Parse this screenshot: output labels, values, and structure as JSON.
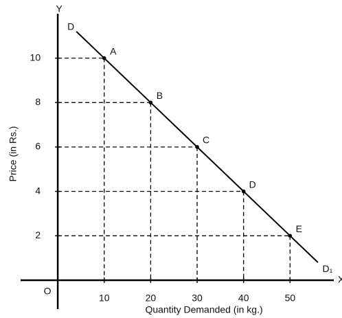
{
  "chart_data": {
    "type": "line",
    "x_label": "Quantity Demanded (in kg.)",
    "y_label": "Price (in Rs.)",
    "x_axis_name": "X",
    "y_axis_name": "Y",
    "origin_label": "O",
    "x": [
      10,
      20,
      30,
      40,
      50
    ],
    "series": [
      {
        "name": "D",
        "end_name": "D₁",
        "color": "#000000",
        "values": [
          10,
          8,
          6,
          4,
          2
        ],
        "point_labels": [
          "A",
          "B",
          "C",
          "D",
          "E"
        ]
      }
    ],
    "xlim": [
      -8,
      60
    ],
    "ylim": [
      -1.3,
      12
    ],
    "xticks": [
      10,
      20,
      30,
      40,
      50
    ],
    "yticks": [
      2,
      4,
      6,
      8,
      10
    ]
  }
}
